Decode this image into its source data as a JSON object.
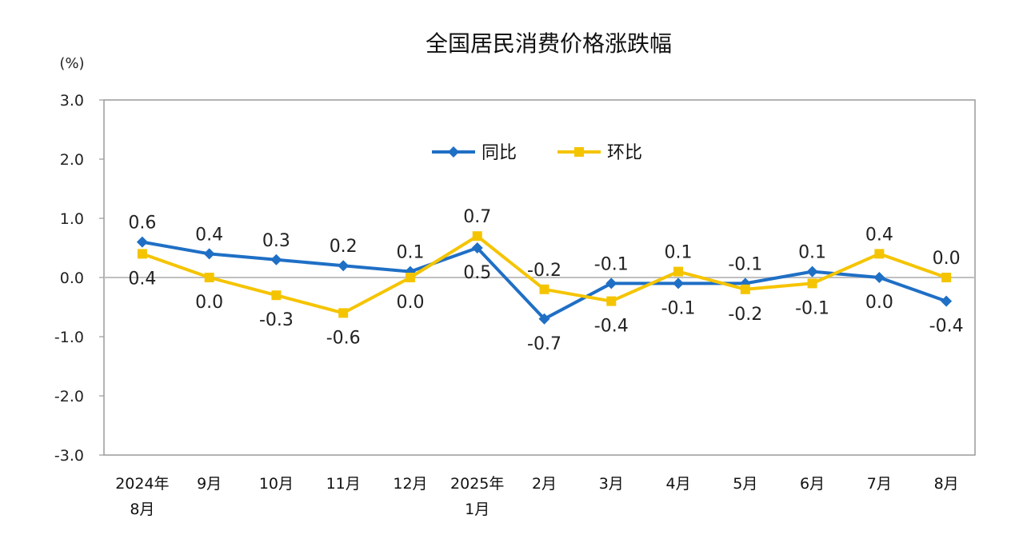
{
  "chart_data": {
    "type": "line",
    "title": "全国居民消费价格涨跌幅",
    "ylabel": "(%)",
    "ylim": [
      -3.0,
      3.0
    ],
    "yticks": [
      "3.0",
      "2.0",
      "1.0",
      "0.0",
      "-1.0",
      "-2.0",
      "-3.0"
    ],
    "ytick_values": [
      3,
      2,
      1,
      0,
      -1,
      -2,
      -3
    ],
    "categories": [
      [
        "2024年",
        "8月"
      ],
      [
        "9月"
      ],
      [
        "10月"
      ],
      [
        "11月"
      ],
      [
        "12月"
      ],
      [
        "2025年",
        "1月"
      ],
      [
        "2月"
      ],
      [
        "3月"
      ],
      [
        "4月"
      ],
      [
        "5月"
      ],
      [
        "6月"
      ],
      [
        "7月"
      ],
      [
        "8月"
      ]
    ],
    "series": [
      {
        "name": "同比",
        "color": "#1f6fc5",
        "marker": "diamond",
        "values": [
          0.6,
          0.4,
          0.3,
          0.2,
          0.1,
          0.5,
          -0.7,
          -0.1,
          -0.1,
          -0.1,
          0.1,
          0.0,
          -0.4
        ],
        "labels": [
          "0.6",
          "0.4",
          "0.3",
          "0.2",
          "0.1",
          "0.5",
          "-0.7",
          "-0.1",
          "-0.1",
          "-0.1",
          "0.1",
          "0.0",
          "-0.4"
        ],
        "label_pos": [
          "above",
          "above",
          "above",
          "above",
          "above",
          "below",
          "below",
          "above",
          "below",
          "above",
          "above",
          "below",
          "below"
        ]
      },
      {
        "name": "环比",
        "color": "#f5c400",
        "marker": "square",
        "values": [
          0.4,
          0.0,
          -0.3,
          -0.6,
          0.0,
          0.7,
          -0.2,
          -0.4,
          0.1,
          -0.2,
          -0.1,
          0.4,
          0.0
        ],
        "labels": [
          "0.4",
          "0.0",
          "-0.3",
          "-0.6",
          "0.0",
          "0.7",
          "-0.2",
          "-0.4",
          "0.1",
          "-0.2",
          "-0.1",
          "0.4",
          "0.0"
        ],
        "label_pos": [
          "below",
          "below",
          "below",
          "below",
          "below",
          "above",
          "above",
          "below",
          "above",
          "below",
          "below",
          "above",
          "above"
        ]
      }
    ],
    "legend_position": "top-center",
    "grid": false,
    "zero_line_color": "#bfbfbf"
  }
}
